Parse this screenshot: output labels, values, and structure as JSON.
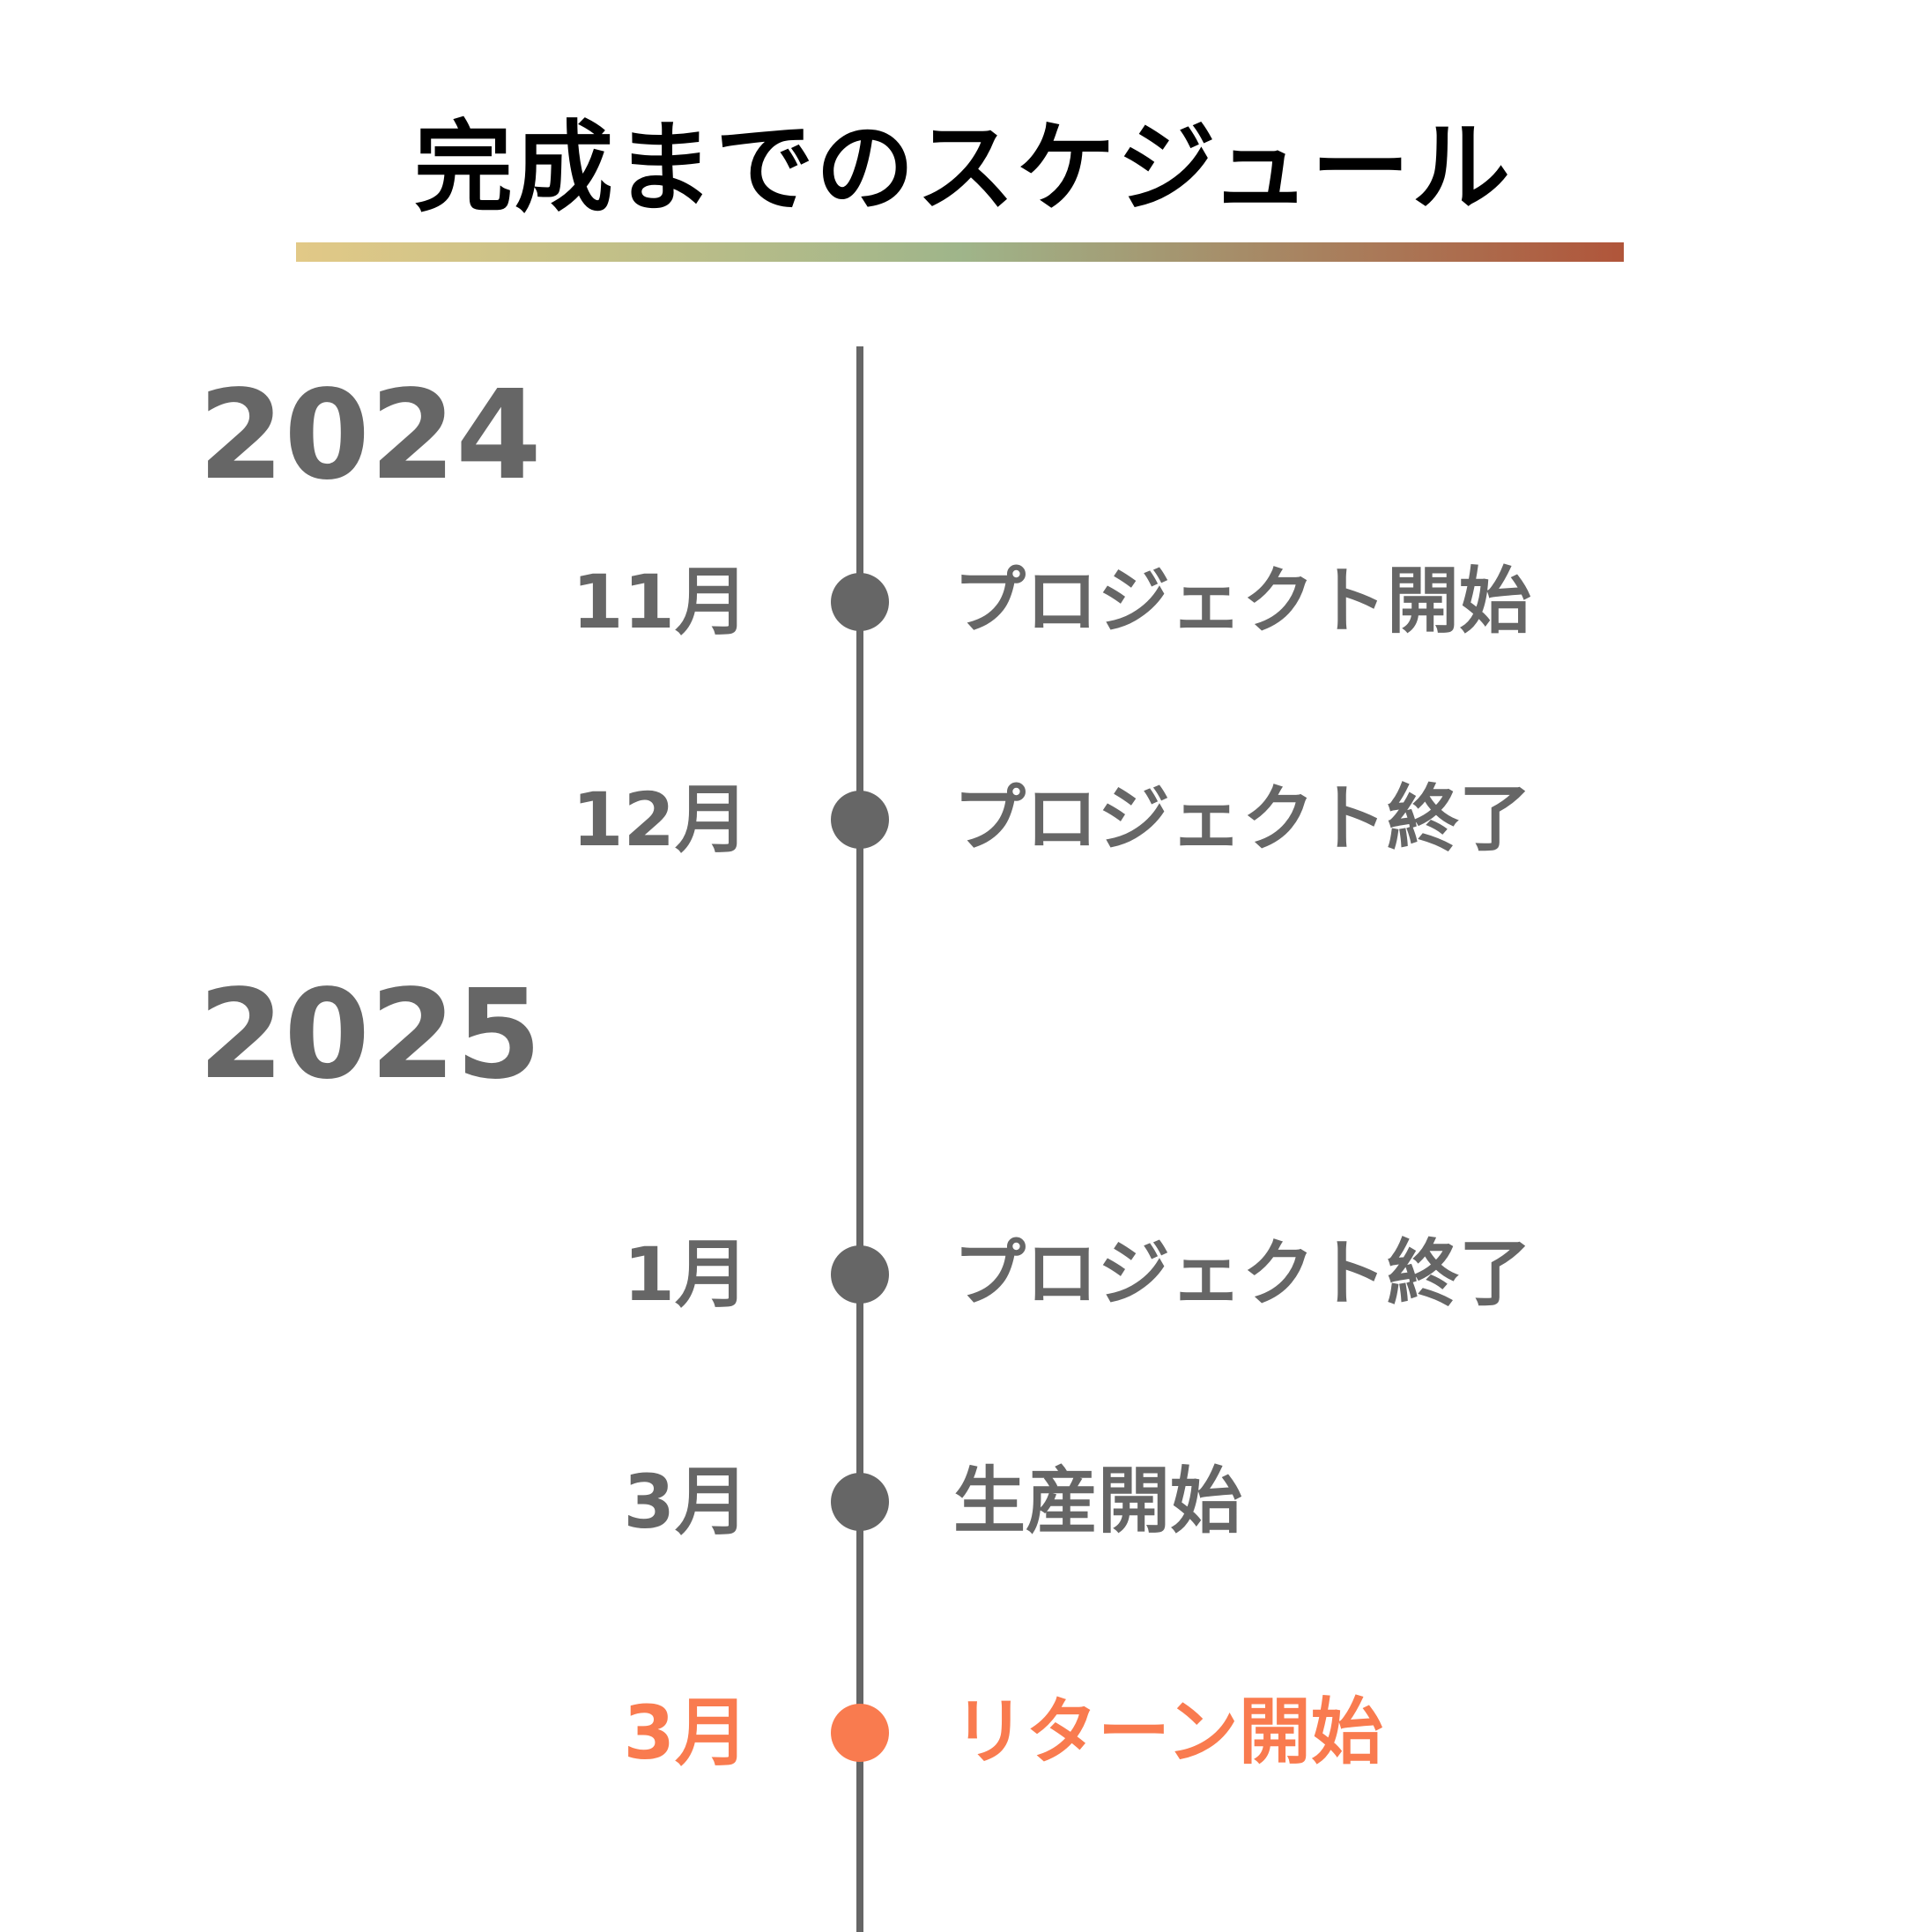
{
  "title": "完成までのスケジュール",
  "colors": {
    "text": "#666666",
    "highlight": "#f97b4f",
    "gradient": [
      "#e2c987",
      "#9fb58a",
      "#b0553a"
    ]
  },
  "years": [
    "2024",
    "2025"
  ],
  "items": [
    {
      "month": "11月",
      "event": "プロジェクト開始",
      "highlight": false
    },
    {
      "month": "12月",
      "event": "プロジェクト終了",
      "highlight": false
    },
    {
      "month": "1月",
      "event": "プロジェクト終了",
      "highlight": false
    },
    {
      "month": "3月",
      "event": "生産開始",
      "highlight": false
    },
    {
      "month": "3月",
      "event": "リターン開始",
      "highlight": true
    }
  ]
}
